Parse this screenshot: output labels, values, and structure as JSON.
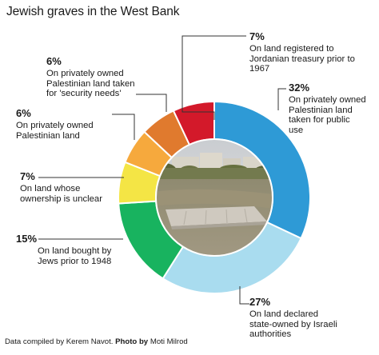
{
  "title": "Jewish graves in the West Bank",
  "footer": {
    "credit": "Data compiled by Kerem Navot.",
    "photo_label": "Photo by",
    "photo_name": "Moti Milrod"
  },
  "colors": {
    "blue": "#2e9ad6",
    "light_blue": "#a9dcef",
    "green": "#18b35f",
    "yellow": "#f4e545",
    "orange_light": "#f6a93d",
    "orange": "#e07a2e",
    "red": "#d3192a",
    "leader": "#333333"
  },
  "chart_data": {
    "type": "pie",
    "donut": true,
    "title": "Jewish graves in the West Bank",
    "slices": [
      {
        "value": 32,
        "pct_label": "32%",
        "label": "On privately owned\nPalestinian land\ntaken for public\nuse",
        "color": "#2e9ad6"
      },
      {
        "value": 27,
        "pct_label": "27%",
        "label": "On land declared\nstate-owned by Israeli\nauthorities",
        "color": "#a9dcef"
      },
      {
        "value": 15,
        "pct_label": "15%",
        "label": "On land bought by\nJews prior to 1948",
        "color": "#18b35f"
      },
      {
        "value": 7,
        "pct_label": "7%",
        "label": "On land whose\nownership is unclear",
        "color": "#f4e545"
      },
      {
        "value": 6,
        "pct_label": "6%",
        "label": "On privately owned\nPalestinian land",
        "color": "#f6a93d"
      },
      {
        "value": 6,
        "pct_label": "6%",
        "label": "On privately owned\nPalestinian land taken\nfor 'security needs'",
        "color": "#e07a2e"
      },
      {
        "value": 7,
        "pct_label": "7%",
        "label": "On land registered to\nJordanian treasury prior to\n1967",
        "color": "#d3192a"
      }
    ]
  }
}
